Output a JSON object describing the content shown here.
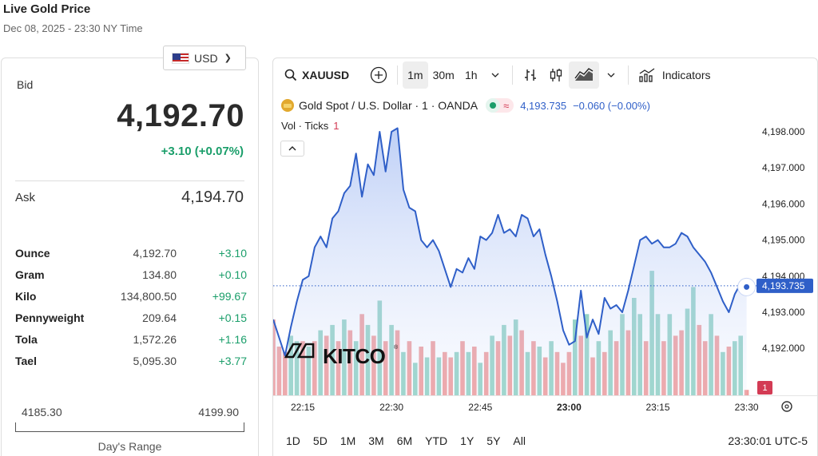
{
  "header": {
    "title": "Live Gold Price",
    "subtitle": "Dec 08, 2025 - 23:30 NY Time"
  },
  "currency": {
    "selected": "USD",
    "flag_icon": "us-flag-icon"
  },
  "quote": {
    "bid_label": "Bid",
    "bid": "4,192.70",
    "change": "+3.10 (+0.07%)",
    "ask_label": "Ask",
    "ask": "4,194.70"
  },
  "units": [
    {
      "name": "Ounce",
      "price": "4,192.70",
      "change": "+3.10"
    },
    {
      "name": "Gram",
      "price": "134.80",
      "change": "+0.10"
    },
    {
      "name": "Kilo",
      "price": "134,800.50",
      "change": "+99.67"
    },
    {
      "name": "Pennyweight",
      "price": "209.64",
      "change": "+0.15"
    },
    {
      "name": "Tola",
      "price": "1,572.26",
      "change": "+1.16"
    },
    {
      "name": "Tael",
      "price": "5,095.30",
      "change": "+3.77"
    }
  ],
  "days_range": {
    "low": "4185.30",
    "high": "4199.90",
    "label": "Day's Range"
  },
  "chart_toolbar": {
    "symbol": "XAUUSD",
    "intervals": [
      "1m",
      "30m",
      "1h"
    ],
    "active_interval": "1m",
    "indicators_label": "Indicators"
  },
  "legend": {
    "instrument": "Gold Spot / U.S. Dollar · 1 · OANDA",
    "status_symbol": "≈",
    "last": "4,193.735",
    "change": "−0.060 (−0.00%)",
    "vol_label": "Vol · Ticks",
    "vol_value": "1"
  },
  "watermark": "KITCO",
  "colors": {
    "line": "#2f5fc8",
    "up_volume": "#8fd1c3",
    "down_volume": "#ef9a9a",
    "positive": "#1a9e6a",
    "negative": "#d33b54"
  },
  "chart_data": {
    "type": "area",
    "title": "",
    "xlabel": "",
    "ylabel": "",
    "x_ticks": [
      "22:15",
      "22:30",
      "22:45",
      "23:00",
      "23:15",
      "23:30"
    ],
    "x_range": [
      "22:10",
      "23:31"
    ],
    "y_ticks": [
      "4,192.000",
      "4,193.000",
      "4,194.000",
      "4,195.000",
      "4,196.000",
      "4,197.000",
      "4,198.000"
    ],
    "ylim": [
      4190.7,
      4198.2
    ],
    "last_price_label": "4,193.735",
    "last_price": 4193.735,
    "volume_badge": "1",
    "grid": false,
    "series": [
      {
        "x": [
          "22:10",
          "22:11",
          "22:12",
          "22:13",
          "22:14",
          "22:15",
          "22:16",
          "22:17",
          "22:18",
          "22:19",
          "22:20",
          "22:21",
          "22:22",
          "22:23",
          "22:24",
          "22:25",
          "22:26",
          "22:27",
          "22:28",
          "22:29",
          "22:30",
          "22:31",
          "22:32",
          "22:33",
          "22:34",
          "22:35",
          "22:36",
          "22:37",
          "22:38",
          "22:39",
          "22:40",
          "22:41",
          "22:42",
          "22:43",
          "22:44",
          "22:45",
          "22:46",
          "22:47",
          "22:48",
          "22:49",
          "22:50",
          "22:51",
          "22:52",
          "22:53",
          "22:54",
          "22:55",
          "22:56",
          "22:57",
          "22:58",
          "22:59",
          "23:00",
          "23:01",
          "23:02",
          "23:03",
          "23:04",
          "23:05",
          "23:06",
          "23:07",
          "23:08",
          "23:09",
          "23:10",
          "23:11",
          "23:12",
          "23:13",
          "23:14",
          "23:15",
          "23:16",
          "23:17",
          "23:18",
          "23:19",
          "23:20",
          "23:21",
          "23:22",
          "23:23",
          "23:24",
          "23:25",
          "23:26",
          "23:27",
          "23:28",
          "23:29",
          "23:30"
        ],
        "values": [
          4192.8,
          4192.3,
          4191.8,
          4192.6,
          4193.3,
          4193.9,
          4194.0,
          4194.8,
          4195.1,
          4194.8,
          4195.6,
          4195.8,
          4196.3,
          4196.5,
          4197.4,
          4196.2,
          4197.1,
          4196.8,
          4198.0,
          4196.9,
          4198.0,
          4198.1,
          4196.4,
          4195.9,
          4195.8,
          4195.0,
          4194.8,
          4195.0,
          4194.7,
          4194.2,
          4193.7,
          4194.2,
          4194.1,
          4194.5,
          4194.2,
          4195.1,
          4195.0,
          4195.2,
          4195.7,
          4195.2,
          4195.3,
          4195.1,
          4195.7,
          4195.6,
          4195.1,
          4195.3,
          4194.6,
          4194.0,
          4193.3,
          4192.5,
          4192.1,
          4192.2,
          4193.6,
          4192.3,
          4192.8,
          4192.4,
          4193.4,
          4193.1,
          4193.2,
          4193.0,
          4193.6,
          4194.3,
          4195.0,
          4195.1,
          4194.9,
          4195.0,
          4194.8,
          4194.8,
          4194.9,
          4195.2,
          4195.1,
          4194.8,
          4194.6,
          4194.4,
          4194.1,
          4193.7,
          4193.3,
          4193.0,
          4193.5,
          4193.8,
          4193.7
        ]
      }
    ],
    "volume": [
      {
        "v": 0.28,
        "up": false
      },
      {
        "v": 0.18,
        "up": false
      },
      {
        "v": 0.16,
        "up": false
      },
      {
        "v": 0.22,
        "up": true
      },
      {
        "v": 0.2,
        "up": true
      },
      {
        "v": 0.2,
        "up": false
      },
      {
        "v": 0.18,
        "up": true
      },
      {
        "v": 0.2,
        "up": false
      },
      {
        "v": 0.24,
        "up": true
      },
      {
        "v": 0.22,
        "up": false
      },
      {
        "v": 0.26,
        "up": true
      },
      {
        "v": 0.2,
        "up": false
      },
      {
        "v": 0.28,
        "up": true
      },
      {
        "v": 0.24,
        "up": false
      },
      {
        "v": 0.2,
        "up": true
      },
      {
        "v": 0.3,
        "up": false
      },
      {
        "v": 0.26,
        "up": true
      },
      {
        "v": 0.22,
        "up": false
      },
      {
        "v": 0.35,
        "up": true
      },
      {
        "v": 0.2,
        "up": false
      },
      {
        "v": 0.26,
        "up": true
      },
      {
        "v": 0.24,
        "up": false
      },
      {
        "v": 0.16,
        "up": true
      },
      {
        "v": 0.2,
        "up": false
      },
      {
        "v": 0.12,
        "up": true
      },
      {
        "v": 0.18,
        "up": false
      },
      {
        "v": 0.14,
        "up": true
      },
      {
        "v": 0.2,
        "up": false
      },
      {
        "v": 0.14,
        "up": true
      },
      {
        "v": 0.16,
        "up": false
      },
      {
        "v": 0.14,
        "up": false
      },
      {
        "v": 0.16,
        "up": true
      },
      {
        "v": 0.2,
        "up": false
      },
      {
        "v": 0.16,
        "up": true
      },
      {
        "v": 0.18,
        "up": false
      },
      {
        "v": 0.12,
        "up": true
      },
      {
        "v": 0.16,
        "up": false
      },
      {
        "v": 0.22,
        "up": true
      },
      {
        "v": 0.2,
        "up": false
      },
      {
        "v": 0.26,
        "up": true
      },
      {
        "v": 0.22,
        "up": false
      },
      {
        "v": 0.28,
        "up": true
      },
      {
        "v": 0.24,
        "up": false
      },
      {
        "v": 0.16,
        "up": true
      },
      {
        "v": 0.2,
        "up": false
      },
      {
        "v": 0.18,
        "up": true
      },
      {
        "v": 0.14,
        "up": false
      },
      {
        "v": 0.2,
        "up": true
      },
      {
        "v": 0.16,
        "up": false
      },
      {
        "v": 0.12,
        "up": false
      },
      {
        "v": 0.16,
        "up": false
      },
      {
        "v": 0.28,
        "up": true
      },
      {
        "v": 0.22,
        "up": false
      },
      {
        "v": 0.3,
        "up": true
      },
      {
        "v": 0.14,
        "up": false
      },
      {
        "v": 0.2,
        "up": true
      },
      {
        "v": 0.16,
        "up": false
      },
      {
        "v": 0.24,
        "up": true
      },
      {
        "v": 0.2,
        "up": false
      },
      {
        "v": 0.3,
        "up": true
      },
      {
        "v": 0.24,
        "up": false
      },
      {
        "v": 0.36,
        "up": true
      },
      {
        "v": 0.3,
        "up": true
      },
      {
        "v": 0.2,
        "up": false
      },
      {
        "v": 0.46,
        "up": true
      },
      {
        "v": 0.3,
        "up": true
      },
      {
        "v": 0.2,
        "up": false
      },
      {
        "v": 0.3,
        "up": true
      },
      {
        "v": 0.22,
        "up": false
      },
      {
        "v": 0.24,
        "up": false
      },
      {
        "v": 0.32,
        "up": true
      },
      {
        "v": 0.4,
        "up": true
      },
      {
        "v": 0.26,
        "up": false
      },
      {
        "v": 0.2,
        "up": false
      },
      {
        "v": 0.3,
        "up": true
      },
      {
        "v": 0.22,
        "up": false
      },
      {
        "v": 0.16,
        "up": true
      },
      {
        "v": 0.18,
        "up": false
      },
      {
        "v": 0.2,
        "up": true
      },
      {
        "v": 0.22,
        "up": true
      },
      {
        "v": 0.02,
        "up": false
      }
    ]
  },
  "bottom_bar": {
    "ranges": [
      "1D",
      "5D",
      "1M",
      "3M",
      "6M",
      "YTD",
      "1Y",
      "5Y",
      "All"
    ],
    "time": "23:30:01 UTC-5"
  }
}
